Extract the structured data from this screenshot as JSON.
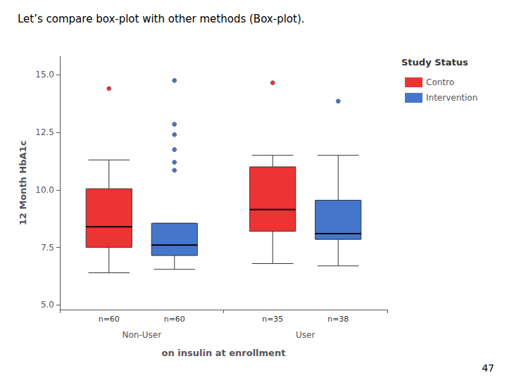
{
  "chart_data": {
    "type": "boxplot",
    "title": "Let’s compare box-plot with other methods (Box-plot).",
    "xlabel": "on insulin at enrollment",
    "ylabel": "12 Month HbA1c",
    "categories": [
      "Non-User",
      "User"
    ],
    "series": [
      {
        "name": "Contro",
        "color": "#EE3333",
        "values": [
          {
            "whisker_low": 6.4,
            "q1": 7.5,
            "median": 8.4,
            "q3": 10.05,
            "whisker_high": 11.3,
            "outliers": [
              14.4
            ],
            "n_label": "n=60"
          },
          {
            "whisker_low": 6.8,
            "q1": 8.2,
            "median": 9.15,
            "q3": 11.0,
            "whisker_high": 11.5,
            "outliers": [
              14.65
            ],
            "n_label": "n=35"
          }
        ]
      },
      {
        "name": "Intervention",
        "color": "#4477CC",
        "values": [
          {
            "whisker_low": 6.55,
            "q1": 7.15,
            "median": 7.6,
            "q3": 8.55,
            "whisker_high": 8.55,
            "outliers": [
              10.85,
              11.2,
              11.75,
              12.4,
              12.85,
              14.75
            ],
            "n_label": "n=60"
          },
          {
            "whisker_low": 6.7,
            "q1": 7.85,
            "median": 8.1,
            "q3": 9.55,
            "whisker_high": 11.5,
            "outliers": [
              13.85
            ],
            "n_label": "n=38"
          }
        ]
      }
    ],
    "ylim": [
      4.8,
      15.8
    ],
    "yticks": [
      {
        "value": 5.0,
        "label": " 5.0"
      },
      {
        "value": 7.5,
        "label": " 7.5"
      },
      {
        "value": 10.0,
        "label": "10.0"
      },
      {
        "value": 12.5,
        "label": "12.5"
      },
      {
        "value": 15.0,
        "label": "15.0"
      }
    ],
    "grid": false,
    "legend": "right",
    "legend_title": "Study Status",
    "annotations": [
      "47"
    ]
  }
}
